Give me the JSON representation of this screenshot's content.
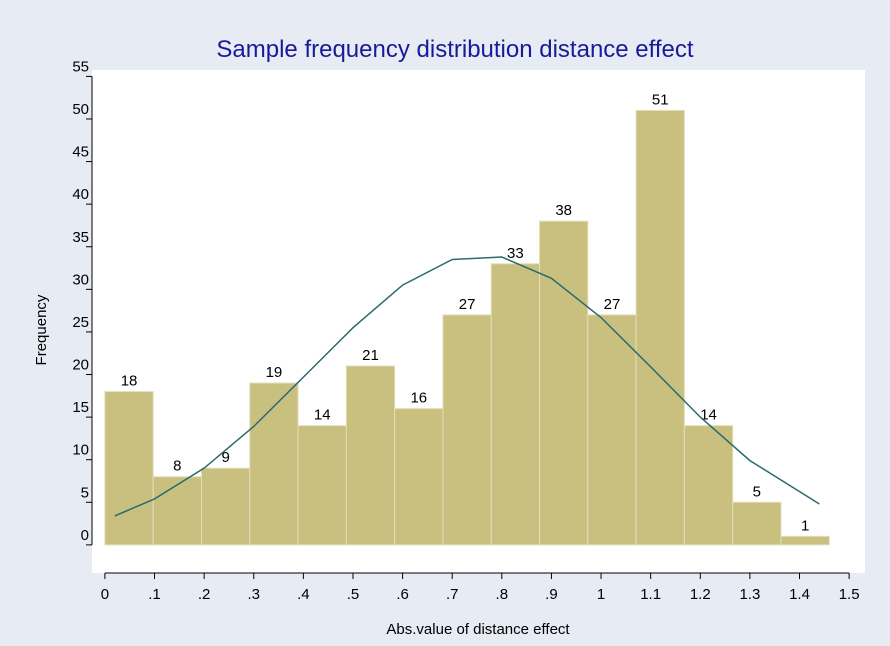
{
  "chart_data": {
    "type": "histogram",
    "title": "Sample frequency distribution distance effect",
    "x_label": "Abs.value of distance effect",
    "y_label": "Frequency",
    "bins": [
      0,
      0.0973,
      0.1947,
      0.292,
      0.3893,
      0.4867,
      0.584,
      0.6813,
      0.7787,
      0.876,
      0.9733,
      1.0707,
      1.168,
      1.2653,
      1.3627,
      1.46
    ],
    "values": [
      18,
      8,
      9,
      19,
      14,
      21,
      16,
      27,
      33,
      38,
      27,
      51,
      14,
      5,
      1
    ],
    "color": "#c9c080",
    "curve": {
      "color": "#2a6b6e",
      "x": [
        0.02,
        0.1,
        0.2,
        0.3,
        0.4,
        0.5,
        0.6,
        0.7,
        0.8,
        0.9,
        1.0,
        1.1,
        1.2,
        1.3,
        1.44
      ],
      "y": [
        3.4,
        5.4,
        9.0,
        13.9,
        19.7,
        25.5,
        30.5,
        33.5,
        33.8,
        31.3,
        26.7,
        20.9,
        15.0,
        9.9,
        4.8
      ]
    },
    "xlim": [
      -0.026,
      1.532
    ],
    "ylim": [
      -3.3,
      55.75
    ],
    "xticks": [
      0,
      {
        "value": 0.1,
        "label": ".1"
      },
      {
        "value": 0.2,
        "label": ".2"
      },
      {
        "value": 0.3,
        "label": ".3"
      },
      {
        "value": 0.4,
        "label": ".4"
      },
      {
        "value": 0.5,
        "label": ".5"
      },
      {
        "value": 0.6,
        "label": ".6"
      },
      {
        "value": 0.7,
        "label": ".7"
      },
      {
        "value": 0.8,
        "label": ".8"
      },
      {
        "value": 0.9,
        "label": ".9"
      },
      1,
      1.1,
      1.2,
      1.3,
      1.4,
      1.5
    ],
    "yticks": [
      0,
      5,
      10,
      15,
      20,
      25,
      30,
      35,
      40,
      45,
      50,
      55
    ]
  }
}
